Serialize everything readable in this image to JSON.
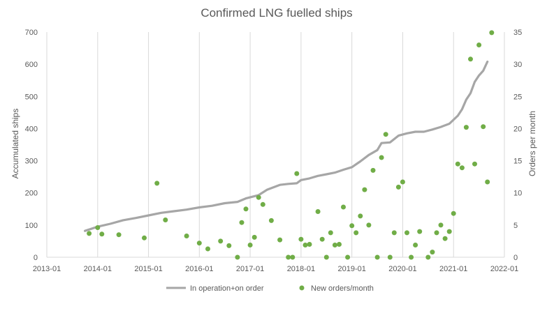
{
  "chart_data": {
    "type": "line+scatter",
    "title": "Confirmed LNG fuelled ships",
    "xlabel": "",
    "ylabel": "Accumulated ships",
    "y2label": "Orders per month",
    "x_ticks": [
      "2013-01",
      "2014-01",
      "2015-01",
      "2016-01",
      "2017-01",
      "2018-01",
      "2019-01",
      "2020-01",
      "2021-01",
      "2022-01"
    ],
    "x_range": [
      "2013-01",
      "2022-01"
    ],
    "ylim": [
      0,
      700
    ],
    "y_ticks": [
      "0",
      "100",
      "200",
      "300",
      "400",
      "500",
      "600",
      "700"
    ],
    "y2lim": [
      0,
      35
    ],
    "y2_ticks": [
      "0",
      "5",
      "10",
      "15",
      "20",
      "25",
      "30",
      "35"
    ],
    "grid": "vertical lines at x ticks",
    "legend_position": "bottom",
    "line_color": "#a6a6a6",
    "marker_color": "#70ad47",
    "series": [
      {
        "name": "In operation+on order",
        "axis": "left",
        "style": "line",
        "points": [
          [
            "2013-10",
            82
          ],
          [
            "2014-01",
            95
          ],
          [
            "2014-04",
            104
          ],
          [
            "2014-07",
            115
          ],
          [
            "2014-10",
            122
          ],
          [
            "2015-01",
            130
          ],
          [
            "2015-04",
            138
          ],
          [
            "2015-07",
            143
          ],
          [
            "2015-10",
            148
          ],
          [
            "2016-01",
            155
          ],
          [
            "2016-04",
            160
          ],
          [
            "2016-07",
            168
          ],
          [
            "2016-10",
            172
          ],
          [
            "2016-12",
            183
          ],
          [
            "2017-03",
            193
          ],
          [
            "2017-05",
            210
          ],
          [
            "2017-08",
            225
          ],
          [
            "2017-10",
            228
          ],
          [
            "2017-12",
            230
          ],
          [
            "2018-01",
            240
          ],
          [
            "2018-03",
            245
          ],
          [
            "2018-05",
            253
          ],
          [
            "2018-07",
            258
          ],
          [
            "2018-09",
            263
          ],
          [
            "2018-11",
            272
          ],
          [
            "2019-01",
            280
          ],
          [
            "2019-03",
            298
          ],
          [
            "2019-05",
            318
          ],
          [
            "2019-07",
            333
          ],
          [
            "2019-08",
            355
          ],
          [
            "2019-10",
            357
          ],
          [
            "2019-12",
            378
          ],
          [
            "2020-02",
            385
          ],
          [
            "2020-04",
            390
          ],
          [
            "2020-06",
            390
          ],
          [
            "2020-08",
            397
          ],
          [
            "2020-10",
            405
          ],
          [
            "2020-12",
            415
          ],
          [
            "2021-02",
            440
          ],
          [
            "2021-03",
            460
          ],
          [
            "2021-04",
            490
          ],
          [
            "2021-05",
            510
          ],
          [
            "2021-06",
            545
          ],
          [
            "2021-07",
            565
          ],
          [
            "2021-08",
            580
          ],
          [
            "2021-09",
            608
          ]
        ]
      },
      {
        "name": "New orders/month",
        "axis": "right",
        "style": "markers",
        "points": [
          [
            "2013-11",
            3.7
          ],
          [
            "2014-01",
            4.6
          ],
          [
            "2014-02",
            3.6
          ],
          [
            "2014-06",
            3.5
          ],
          [
            "2014-12",
            3.0
          ],
          [
            "2015-03",
            11.5
          ],
          [
            "2015-05",
            5.8
          ],
          [
            "2015-10",
            3.3
          ],
          [
            "2016-01",
            2.2
          ],
          [
            "2016-03",
            1.3
          ],
          [
            "2016-06",
            2.5
          ],
          [
            "2016-08",
            1.8
          ],
          [
            "2016-10",
            0
          ],
          [
            "2016-11",
            5.4
          ],
          [
            "2016-12",
            7.5
          ],
          [
            "2017-01",
            1.9
          ],
          [
            "2017-02",
            3.1
          ],
          [
            "2017-03",
            9.3
          ],
          [
            "2017-04",
            8.2
          ],
          [
            "2017-06",
            5.7
          ],
          [
            "2017-08",
            2.7
          ],
          [
            "2017-10",
            0
          ],
          [
            "2017-11",
            0
          ],
          [
            "2017-12",
            13.0
          ],
          [
            "2018-01",
            2.8
          ],
          [
            "2018-02",
            1.9
          ],
          [
            "2018-03",
            2.0
          ],
          [
            "2018-05",
            7.1
          ],
          [
            "2018-06",
            2.8
          ],
          [
            "2018-07",
            0
          ],
          [
            "2018-08",
            3.8
          ],
          [
            "2018-09",
            1.9
          ],
          [
            "2018-10",
            2.0
          ],
          [
            "2018-11",
            7.8
          ],
          [
            "2018-12",
            0
          ],
          [
            "2019-01",
            4.9
          ],
          [
            "2019-02",
            3.8
          ],
          [
            "2019-03",
            6.4
          ],
          [
            "2019-04",
            10.5
          ],
          [
            "2019-05",
            5.0
          ],
          [
            "2019-06",
            13.5
          ],
          [
            "2019-07",
            0
          ],
          [
            "2019-08",
            15.5
          ],
          [
            "2019-09",
            19.1
          ],
          [
            "2019-10",
            0
          ],
          [
            "2019-11",
            3.8
          ],
          [
            "2019-12",
            10.9
          ],
          [
            "2020-01",
            11.7
          ],
          [
            "2020-02",
            3.8
          ],
          [
            "2020-03",
            0
          ],
          [
            "2020-04",
            1.9
          ],
          [
            "2020-05",
            4.0
          ],
          [
            "2020-07",
            0
          ],
          [
            "2020-08",
            0.8
          ],
          [
            "2020-09",
            3.8
          ],
          [
            "2020-10",
            5.0
          ],
          [
            "2020-11",
            2.9
          ],
          [
            "2020-12",
            4.0
          ],
          [
            "2021-01",
            6.8
          ],
          [
            "2021-02",
            14.5
          ],
          [
            "2021-03",
            13.9
          ],
          [
            "2021-04",
            20.2
          ],
          [
            "2021-05",
            30.8
          ],
          [
            "2021-06",
            14.5
          ],
          [
            "2021-07",
            33.0
          ],
          [
            "2021-08",
            20.3
          ],
          [
            "2021-09",
            11.7
          ],
          [
            "2021-10",
            34.9
          ]
        ]
      }
    ]
  }
}
